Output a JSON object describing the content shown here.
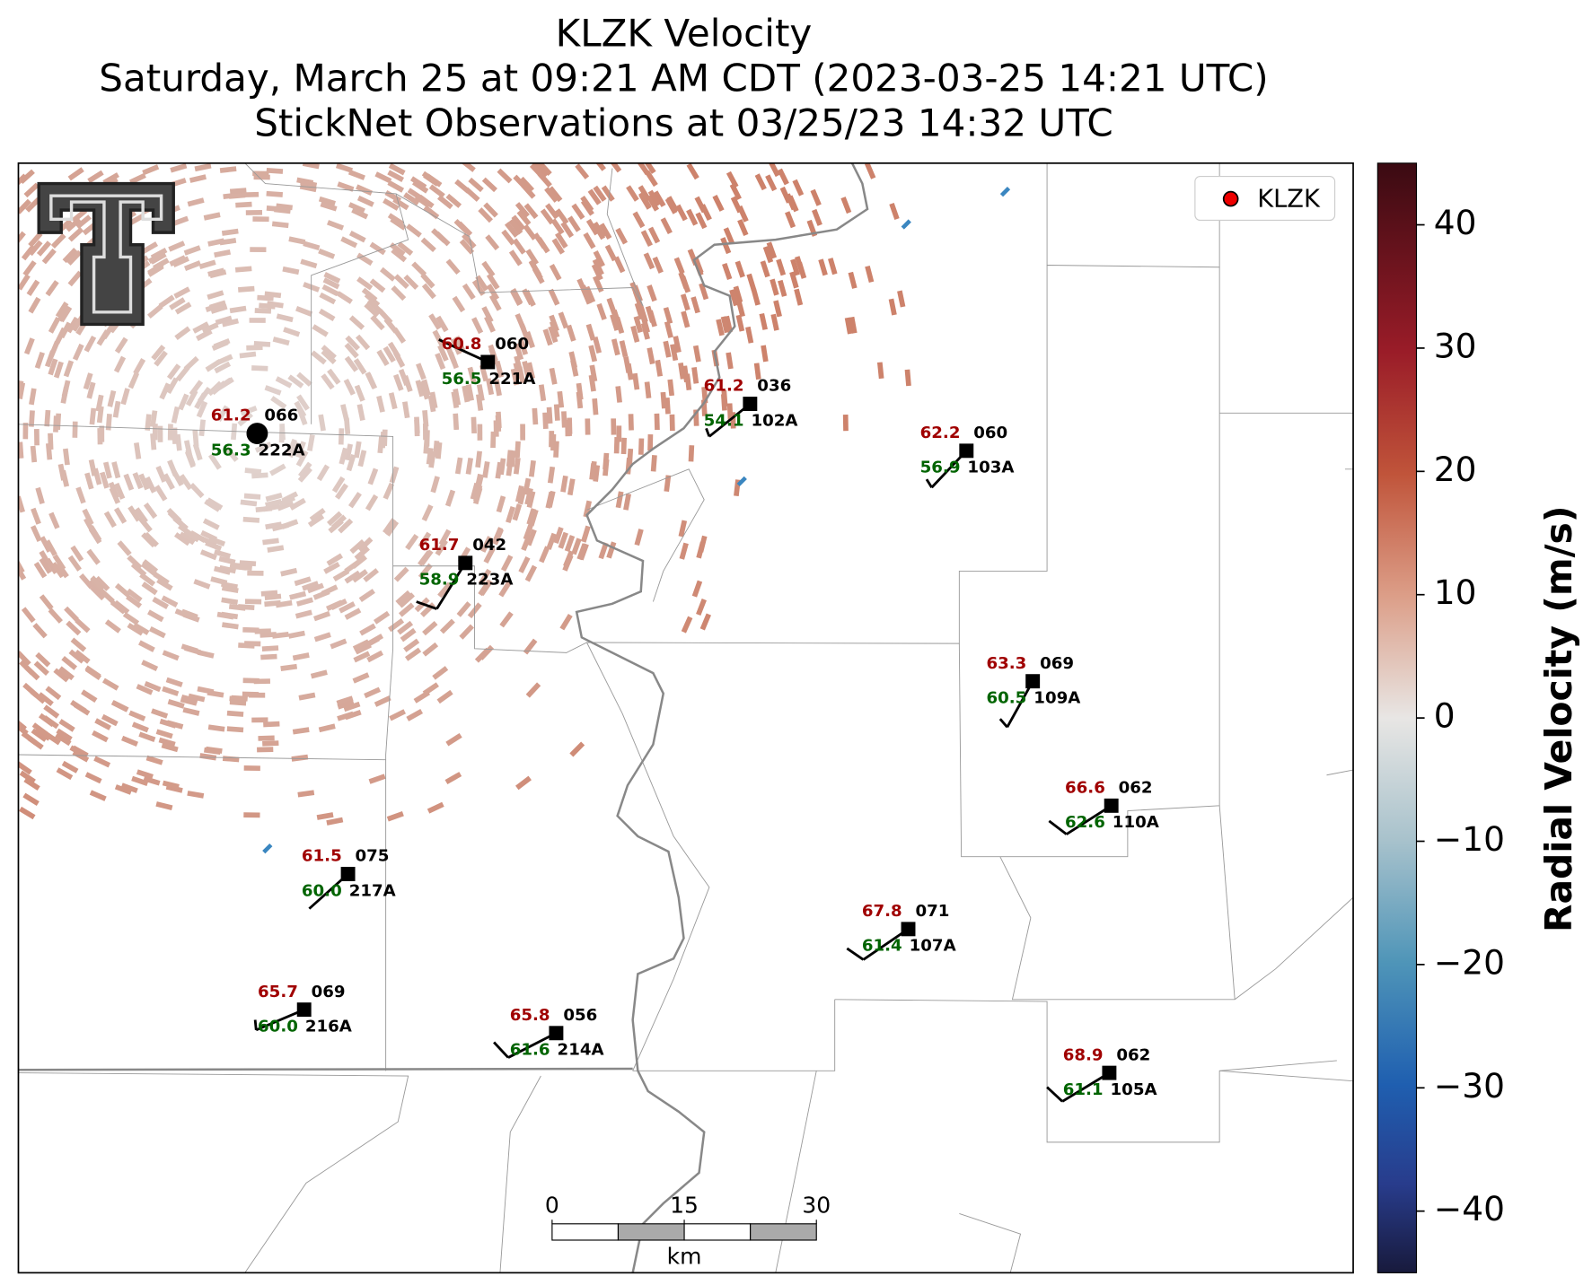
{
  "title": [
    "KLZK Velocity",
    "Saturday, March 25 at 09:21 AM CDT (2023-03-25 14:21 UTC)",
    "StickNet Observations at 03/25/23 14:32 UTC"
  ],
  "legend": {
    "label": "KLZK"
  },
  "colorbar": {
    "label": "Radial Velocity (m/s)",
    "lim": [
      -45,
      45
    ],
    "ticks": [
      {
        "value": -40,
        "label": "−40"
      },
      {
        "value": -30,
        "label": "−30"
      },
      {
        "value": -20,
        "label": "−20"
      },
      {
        "value": -10,
        "label": "−10"
      },
      0,
      10,
      20,
      30,
      40
    ]
  },
  "scale_bar": {
    "ticks": [
      0,
      15,
      30
    ],
    "unit": "km"
  },
  "stations": [
    {
      "id": "222A",
      "temp": "61.2",
      "dew": "56.3",
      "code": "066"
    },
    {
      "id": "221A",
      "temp": "60.8",
      "dew": "56.5",
      "code": "060"
    },
    {
      "id": "102A",
      "temp": "61.2",
      "dew": "54.1",
      "code": "036"
    },
    {
      "id": "103A",
      "temp": "62.2",
      "dew": "56.9",
      "code": "060"
    },
    {
      "id": "223A",
      "temp": "61.7",
      "dew": "58.9",
      "code": "042"
    },
    {
      "id": "109A",
      "temp": "63.3",
      "dew": "60.5",
      "code": "069"
    },
    {
      "id": "110A",
      "temp": "66.6",
      "dew": "62.6",
      "code": "062"
    },
    {
      "id": "217A",
      "temp": "61.5",
      "dew": "60.0",
      "code": "075"
    },
    {
      "id": "107A",
      "temp": "67.8",
      "dew": "61.4",
      "code": "071"
    },
    {
      "id": "216A",
      "temp": "65.7",
      "dew": "60.0",
      "code": "069"
    },
    {
      "id": "214A",
      "temp": "65.8",
      "dew": "61.6",
      "code": "056"
    },
    {
      "id": "105A",
      "temp": "68.9",
      "dew": "61.1",
      "code": "062"
    }
  ]
}
